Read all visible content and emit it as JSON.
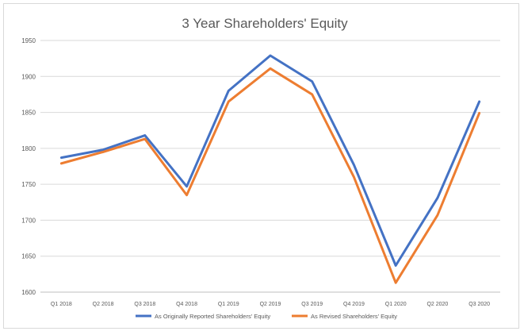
{
  "chart_data": {
    "type": "line",
    "title": "3 Year Shareholders' Equity",
    "xlabel": "",
    "ylabel": "",
    "categories": [
      "Q1 2018",
      "Q2 2018",
      "Q3 2018",
      "Q4 2018",
      "Q1 2019",
      "Q2 2019",
      "Q3 2019",
      "Q4 2019",
      "Q1 2020",
      "Q2 2020",
      "Q3 2020"
    ],
    "ylim": [
      1600,
      1950
    ],
    "yticks": [
      1600,
      1650,
      1700,
      1750,
      1800,
      1850,
      1900,
      1950
    ],
    "grid": true,
    "legend_position": "bottom",
    "series": [
      {
        "name": "As Originally Reported Shareholders' Equity",
        "color": "#4472c4",
        "values": [
          1787,
          1798,
          1818,
          1747,
          1880,
          1929,
          1893,
          1777,
          1637,
          1731,
          1865
        ]
      },
      {
        "name": "As Revised Shareholders' Equity",
        "color": "#ed7d31",
        "values": [
          1779,
          1795,
          1813,
          1735,
          1865,
          1911,
          1875,
          1760,
          1613,
          1707,
          1849
        ]
      }
    ]
  }
}
